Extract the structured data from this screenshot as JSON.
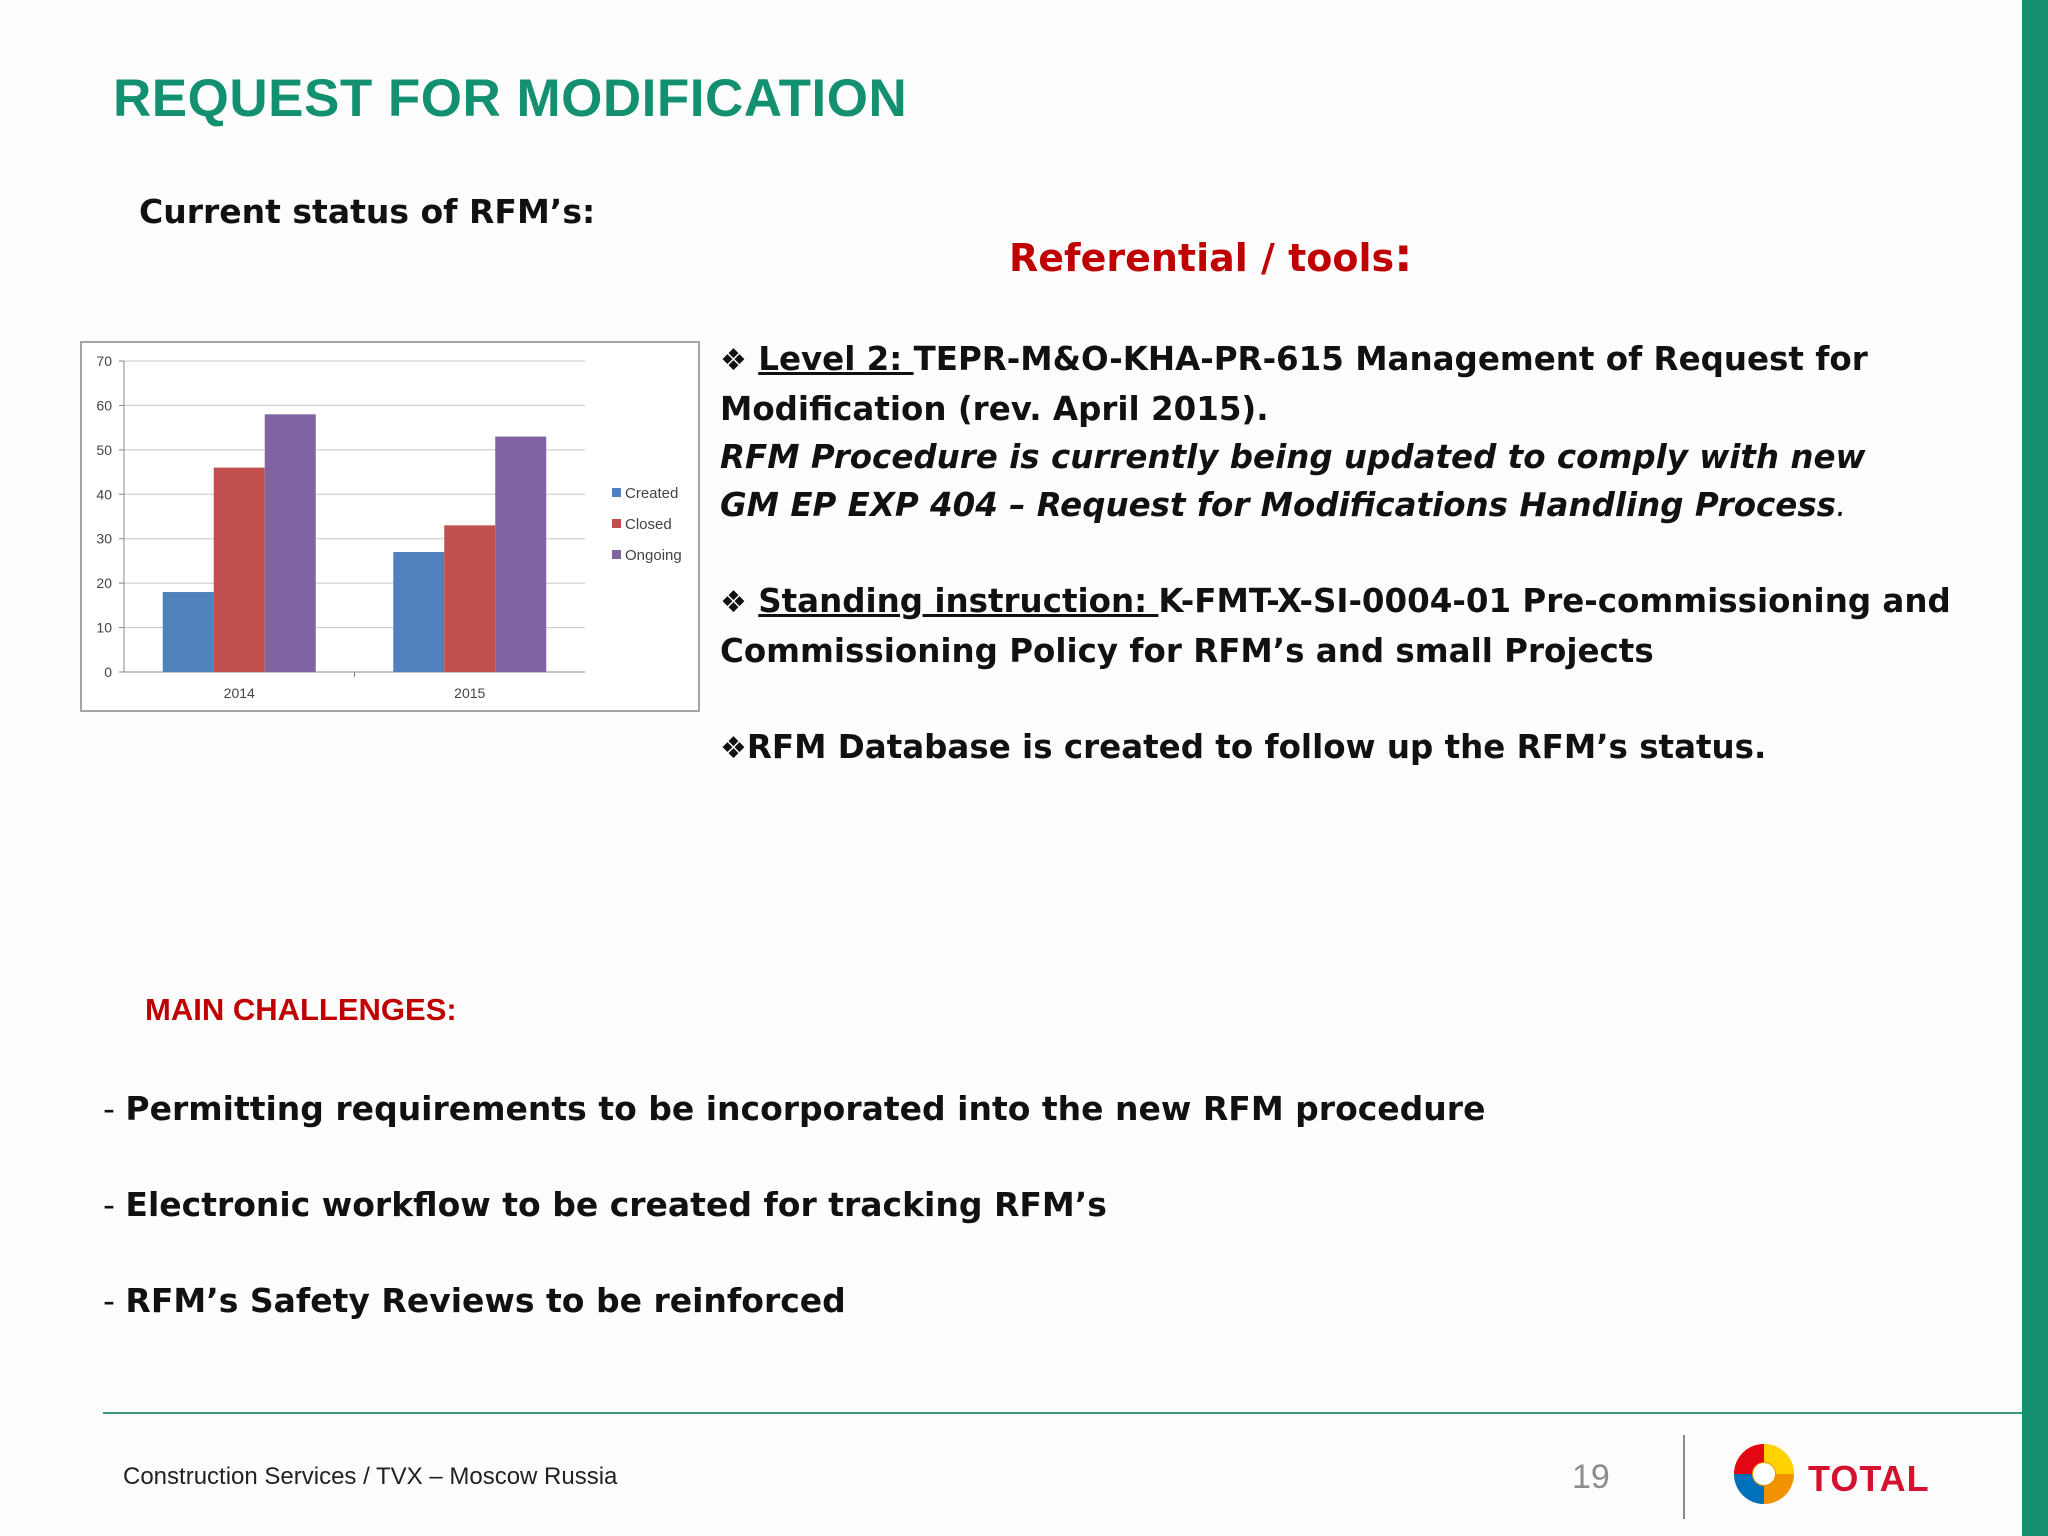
{
  "slide": {
    "title": "REQUEST FOR MODIFICATION",
    "status_label": "Current status of RFM’s:",
    "referential_title": "Referential / tools",
    "referential_colon": ":",
    "colors": {
      "brand_green": "#13906f",
      "heading_red": "#c00000"
    }
  },
  "references": {
    "bullet_icon": "four-diamond-bullet-icon",
    "bullet_glyph": "❖",
    "level2": {
      "label": "Level 2: ",
      "text": "TEPR-M&O-KHA-PR-615  Management of Request for Modification (rev. April 2015).",
      "italic_line_1": "RFM Procedure is currently being updated to comply with new",
      "italic_line_2": "GM EP EXP 404 – Request for Modifications Handling Process",
      "italic_end": "."
    },
    "standing": {
      "label": "Standing instruction: ",
      "text": "K-FMT-X-SI-0004-01 Pre-commissioning and Commissioning Policy for RFM’s and small Projects"
    },
    "database": {
      "text": "RFM Database is created to follow up the RFM’s status."
    }
  },
  "challenges": {
    "title": "MAIN CHALLENGES:",
    "dash": "- ",
    "items": [
      "Permitting requirements to be incorporated into the new RFM procedure",
      "Electronic workflow to be created for tracking RFM’s",
      "RFM’s Safety Reviews to be reinforced"
    ]
  },
  "footer": {
    "text": "Construction Services / TVX – Moscow Russia",
    "page_number": "19",
    "brand": "TOTAL"
  },
  "chart_data": {
    "type": "bar",
    "title": "",
    "xlabel": "",
    "ylabel": "",
    "categories": [
      "2014",
      "2015"
    ],
    "series": [
      {
        "name": "Created",
        "values": [
          18,
          27
        ],
        "color": "#4f81bd"
      },
      {
        "name": "Closed",
        "values": [
          46,
          33
        ],
        "color": "#c0504d"
      },
      {
        "name": "Ongoing",
        "values": [
          58,
          53
        ],
        "color": "#8064a2"
      }
    ],
    "ylim": [
      0,
      70
    ],
    "yticks": [
      0,
      10,
      20,
      30,
      40,
      50,
      60,
      70
    ],
    "grid": true,
    "legend": "right"
  }
}
